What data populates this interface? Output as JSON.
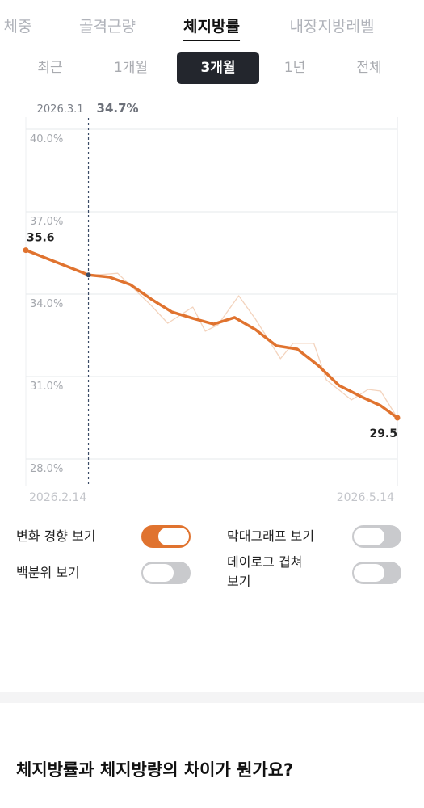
{
  "tabs": {
    "items": [
      "체중",
      "골격근량",
      "체지방률",
      "내장지방레벨"
    ],
    "selected": 2
  },
  "periods": {
    "items": [
      "최근",
      "1개월",
      "3개월",
      "1년",
      "전체"
    ],
    "selected": 2
  },
  "chart_data": {
    "type": "line",
    "xlim": [
      0,
      89
    ],
    "xticks": [
      {
        "value": 0,
        "label": "2026.2.14"
      },
      {
        "value": 89,
        "label": "2026.5.14"
      }
    ],
    "ylim": [
      27,
      40.1
    ],
    "yticks": [
      {
        "value": 40,
        "label": "40.0%"
      },
      {
        "value": 37,
        "label": "37.0%"
      },
      {
        "value": 34,
        "label": "34.0%"
      },
      {
        "value": 31,
        "label": "31.0%"
      },
      {
        "value": 28,
        "label": "28.0%"
      }
    ],
    "grid": true,
    "series": [
      {
        "color": "#e0732f",
        "x": [
          0,
          8,
          15,
          20,
          25,
          30,
          35,
          40,
          45,
          50,
          55,
          60,
          65,
          70,
          75,
          80,
          85,
          89
        ],
        "values": [
          35.6,
          35.12,
          34.7,
          34.62,
          34.35,
          33.82,
          33.35,
          33.12,
          32.91,
          33.15,
          32.71,
          32.12,
          32.0,
          31.41,
          30.68,
          30.29,
          29.94,
          29.5
        ]
      },
      {
        "color": "#f3d3bd",
        "x": [
          0,
          8,
          15,
          22,
          30,
          34,
          40,
          43,
          46,
          51,
          55,
          61,
          64,
          69,
          72,
          78,
          82,
          85,
          89
        ],
        "values": [
          35.6,
          35.1,
          34.68,
          34.76,
          33.59,
          32.94,
          33.53,
          32.65,
          32.88,
          33.94,
          33.09,
          31.65,
          32.21,
          32.21,
          30.88,
          30.15,
          30.53,
          30.47,
          29.5
        ]
      }
    ],
    "annotation": {
      "x": 15,
      "value": 34.7,
      "date": "2026.3.1",
      "label": "34.7%"
    }
  },
  "toggles": [
    {
      "label": "변화 경향 보기",
      "on": true
    },
    {
      "label": "막대그래프 보기",
      "on": false
    },
    {
      "label": "백분위 보기",
      "on": false
    },
    {
      "label": "데이로그 겹쳐 보기",
      "on": false
    }
  ],
  "faq": {
    "question": "체지방률과 체지방량의 차이가 뭔가요?"
  }
}
